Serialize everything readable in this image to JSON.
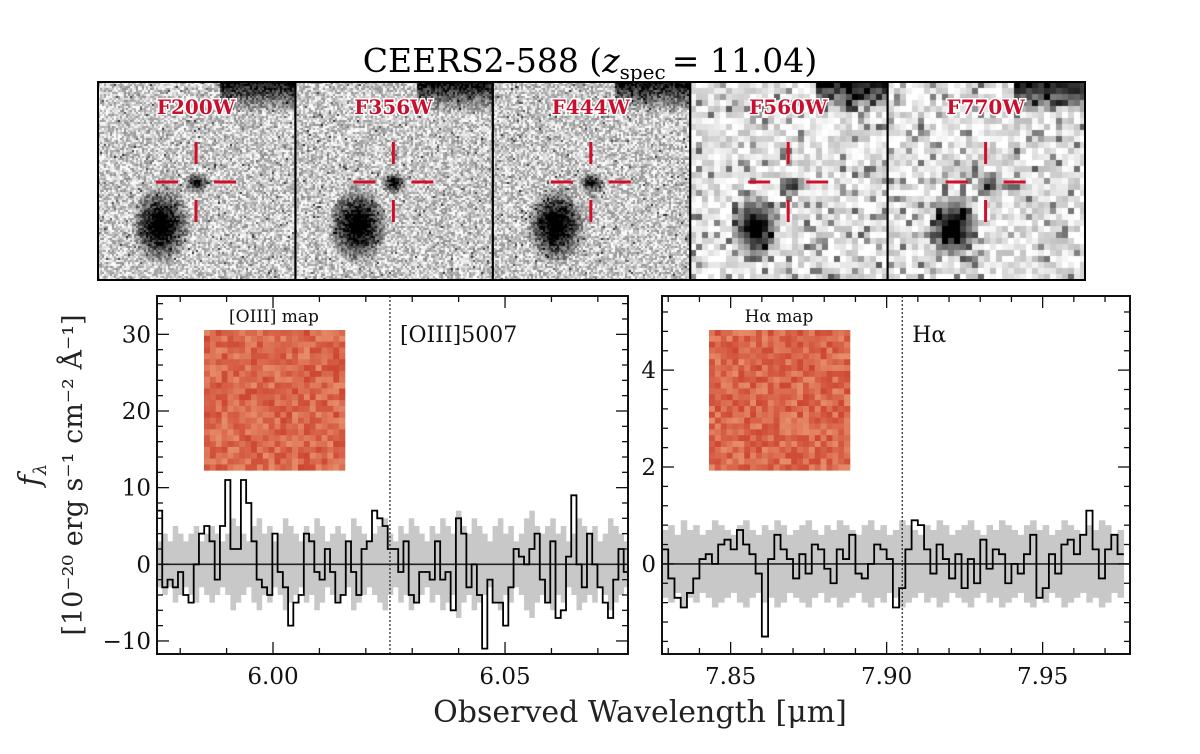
{
  "title": "CEERS2-588",
  "title_z": "z",
  "title_sub": "spec",
  "title_value": "= 11.04",
  "stamps": [
    {
      "label": "F200W"
    },
    {
      "label": "F356W"
    },
    {
      "label": "F444W"
    },
    {
      "label": "F560W"
    },
    {
      "label": "F770W"
    }
  ],
  "colors": {
    "crosshair": "#d0102a",
    "spectrum": "#000000",
    "error": "#c8c8c8",
    "map": "#e8543c"
  },
  "chart_data": [
    {
      "type": "line",
      "panel": "left",
      "inset_label": "[OIII] map",
      "line_label": "[OIII]5007",
      "line_x": 6.0252,
      "xlim": [
        5.975,
        6.0765
      ],
      "ylim": [
        -11.7,
        35
      ],
      "xticks": [
        6.0,
        6.05
      ],
      "xtick_labels": [
        "6.00",
        "6.05"
      ],
      "yticks": [
        -10,
        0,
        10,
        20,
        30
      ],
      "ytick_labels": [
        "−10",
        "0",
        "10",
        "20",
        "30"
      ],
      "x_start": 5.975,
      "x_step": 0.00113,
      "flux": [
        7,
        -3,
        -2,
        -3,
        -1,
        -4,
        -5,
        0,
        4,
        5,
        3,
        -2,
        5,
        11,
        2,
        2,
        11,
        8,
        3,
        -2,
        -3,
        -4,
        4,
        -1,
        -3,
        -8,
        -5,
        -4,
        4,
        3,
        -1,
        -2,
        2,
        -1,
        -5,
        -4,
        3,
        -1,
        -4,
        2,
        3,
        7,
        6,
        5,
        2,
        2,
        -1,
        3,
        -4,
        -5,
        -1,
        -1,
        -2,
        3,
        -2,
        -1,
        -6,
        6,
        4,
        -3,
        0,
        -4,
        -11,
        -2,
        -5,
        -5,
        -8,
        -3,
        2,
        1,
        0,
        2,
        4,
        -2,
        -5,
        3,
        -7,
        -6,
        1,
        9,
        0,
        -3,
        4,
        0,
        -3,
        -5,
        -7,
        -2,
        2,
        -1
      ],
      "error": [
        3,
        4,
        3,
        5,
        4,
        3,
        4,
        5,
        3,
        4,
        5,
        4,
        3,
        4,
        6,
        5,
        4,
        3,
        5,
        6,
        4,
        5,
        3,
        4,
        6,
        5,
        4,
        3,
        5,
        4,
        6,
        5,
        3,
        4,
        5,
        4,
        3,
        6,
        5,
        4,
        3,
        4,
        5,
        6,
        4,
        3,
        5,
        4,
        6,
        5,
        4,
        3,
        5,
        4,
        6,
        5,
        4,
        7,
        5,
        4,
        6,
        5,
        4,
        3,
        5,
        6,
        4,
        5,
        3,
        4,
        6,
        7,
        5,
        4,
        5,
        6,
        4,
        5,
        3,
        4,
        6,
        5,
        4,
        5,
        3,
        4,
        6,
        5,
        4,
        3
      ]
    },
    {
      "type": "line",
      "panel": "right",
      "inset_label": "Hα map",
      "line_label": "Hα",
      "line_x": 7.905,
      "xlim": [
        7.828,
        7.978
      ],
      "ylim": [
        -1.86,
        5.53
      ],
      "xticks": [
        7.85,
        7.9,
        7.95
      ],
      "xtick_labels": [
        "7.85",
        "7.90",
        "7.95"
      ],
      "yticks": [
        0,
        2,
        4
      ],
      "ytick_labels": [
        "0",
        "2",
        "4"
      ],
      "x_start": 7.828,
      "x_step": 0.002,
      "flux": [
        0.3,
        -0.3,
        -0.7,
        -0.9,
        -0.6,
        -0.3,
        0.1,
        0.2,
        0,
        0.4,
        0.5,
        0.3,
        0.7,
        0.4,
        0.2,
        -0.2,
        -1.5,
        0.1,
        0.6,
        0.3,
        0.1,
        -0.3,
        0.2,
        -0.2,
        0.4,
        0.3,
        -0.1,
        -0.4,
        0.3,
        0.1,
        0.6,
        -0.2,
        -0.3,
        0,
        0.4,
        0.3,
        0.1,
        -0.9,
        -0.5,
        0.3,
        0.9,
        0.8,
        0.3,
        -0.2,
        0.4,
        0.1,
        -0.3,
        0.2,
        -0.5,
        0.1,
        -0.4,
        0.5,
        -0.1,
        0.3,
        0.2,
        -0.4,
        0,
        -0.2,
        0.2,
        0.6,
        -0.7,
        -0.5,
        0.2,
        -0.2,
        0.4,
        0.5,
        0.2,
        0.6,
        1.1,
        0.3,
        -0.3,
        0.3,
        0.6,
        0.2
      ],
      "error": [
        0.7,
        0.8,
        0.6,
        0.9,
        0.7,
        0.8,
        0.6,
        0.7,
        0.9,
        0.8,
        0.7,
        0.6,
        0.8,
        0.9,
        0.7,
        0.6,
        0.8,
        0.7,
        0.9,
        0.8,
        0.6,
        0.7,
        0.8,
        0.9,
        0.7,
        0.6,
        0.8,
        0.7,
        0.9,
        0.8,
        0.7,
        0.6,
        0.8,
        0.9,
        0.7,
        0.8,
        0.6,
        0.7,
        0.9,
        0.8,
        0.7,
        0.6,
        0.8,
        0.7,
        0.9,
        0.8,
        0.6,
        0.7,
        0.8,
        0.9,
        0.7,
        0.6,
        0.8,
        0.7,
        0.9,
        0.8,
        0.7,
        0.6,
        0.8,
        0.9,
        0.7,
        0.8,
        0.6,
        0.7,
        0.9,
        0.8,
        0.7,
        0.6,
        0.8,
        0.7,
        0.9,
        0.8,
        0.6,
        0.7
      ]
    }
  ],
  "ylabel_symbol": "f",
  "ylabel_sub": "λ",
  "ylabel_units": "[10⁻²⁰ erg s⁻¹ cm⁻² Å⁻¹]",
  "xlabel": "Observed Wavelength [μm]"
}
